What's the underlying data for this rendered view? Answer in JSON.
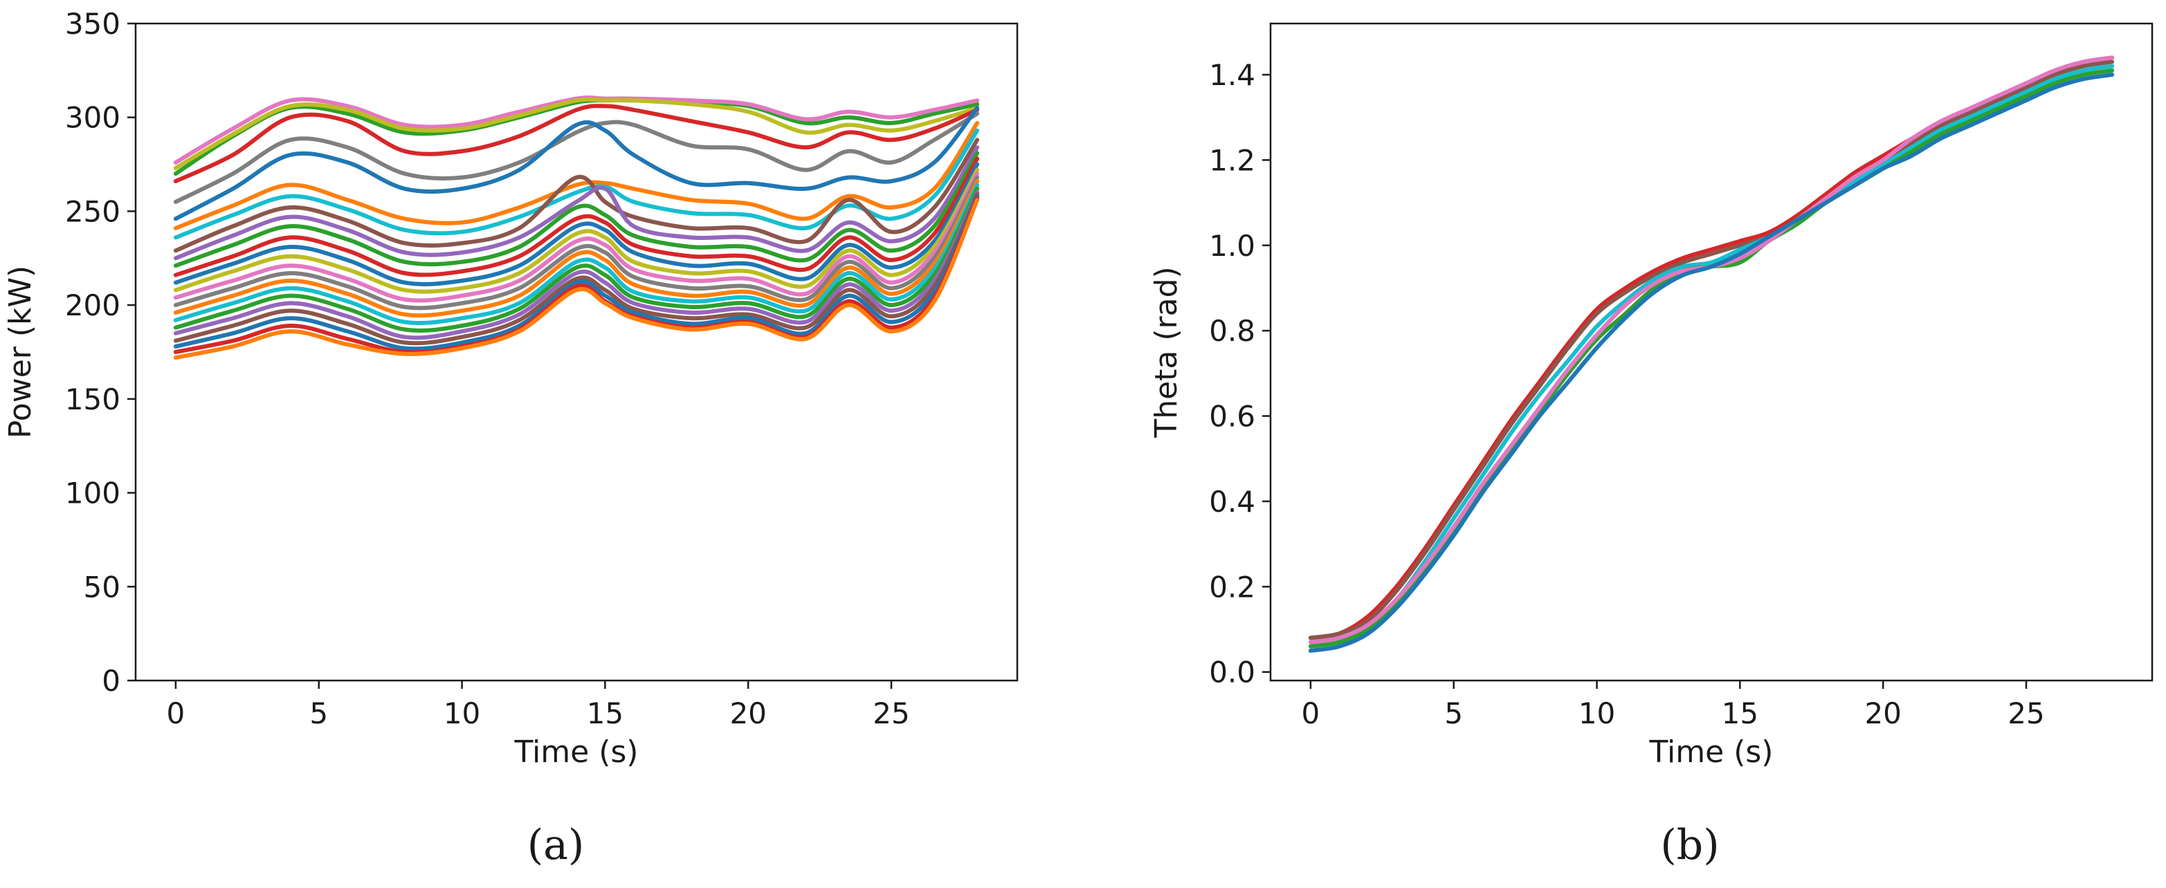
{
  "chart_data": [
    {
      "type": "line",
      "panel": "(a)",
      "xlabel": "Time (s)",
      "ylabel": "Power (kW)",
      "xlim": [
        -1.4,
        29.4
      ],
      "ylim": [
        0,
        350
      ],
      "xticks": [
        0,
        5,
        10,
        15,
        20,
        25
      ],
      "yticks": [
        0,
        50,
        100,
        150,
        200,
        250,
        300,
        350
      ],
      "grid": false,
      "legend": "none",
      "series_count_note": "many overlapping trajectories",
      "x": [
        0,
        2,
        4,
        6,
        8,
        10,
        12,
        14,
        15,
        16,
        18,
        20,
        22,
        23.5,
        25,
        26.5,
        28
      ],
      "series": [
        {
          "color": "#2ca02c",
          "values": [
            270,
            290,
            305,
            302,
            292,
            293,
            300,
            308,
            309,
            309,
            308,
            306,
            297,
            300,
            297,
            302,
            307
          ]
        },
        {
          "color": "#e377c2",
          "values": [
            276,
            294,
            309,
            306,
            296,
            296,
            303,
            310,
            310,
            310,
            309,
            307,
            299,
            303,
            300,
            304,
            309
          ]
        },
        {
          "color": "#bcbd22",
          "values": [
            273,
            291,
            306,
            304,
            294,
            294,
            301,
            309,
            309,
            309,
            307,
            303,
            292,
            296,
            293,
            298,
            305
          ]
        },
        {
          "color": "#d62728",
          "values": [
            266,
            280,
            300,
            298,
            282,
            282,
            290,
            304,
            306,
            304,
            298,
            292,
            284,
            292,
            288,
            294,
            304
          ]
        },
        {
          "color": "#7f7f7f",
          "values": [
            255,
            270,
            288,
            284,
            270,
            268,
            276,
            292,
            297,
            296,
            285,
            283,
            272,
            282,
            276,
            288,
            302
          ]
        },
        {
          "color": "#1f77b4",
          "values": [
            246,
            262,
            280,
            276,
            262,
            262,
            272,
            296,
            293,
            280,
            265,
            265,
            262,
            268,
            266,
            276,
            305
          ]
        },
        {
          "color": "#ff7f0e",
          "values": [
            241,
            253,
            264,
            256,
            246,
            244,
            252,
            264,
            265,
            262,
            256,
            254,
            246,
            258,
            252,
            262,
            297
          ]
        },
        {
          "color": "#17becf",
          "values": [
            236,
            248,
            258,
            251,
            240,
            239,
            247,
            260,
            263,
            255,
            249,
            248,
            241,
            253,
            246,
            258,
            293
          ]
        },
        {
          "color": "#8c564b",
          "values": [
            229,
            242,
            252,
            245,
            233,
            233,
            241,
            268,
            255,
            247,
            241,
            241,
            234,
            256,
            239,
            252,
            288
          ]
        },
        {
          "color": "#9467bd",
          "values": [
            225,
            237,
            247,
            240,
            228,
            228,
            236,
            255,
            262,
            242,
            236,
            236,
            229,
            244,
            234,
            246,
            284
          ]
        },
        {
          "color": "#2ca02c",
          "values": [
            221,
            232,
            242,
            235,
            223,
            223,
            231,
            252,
            248,
            237,
            231,
            231,
            224,
            240,
            229,
            242,
            281
          ]
        },
        {
          "color": "#d62728",
          "values": [
            216,
            226,
            236,
            229,
            217,
            218,
            226,
            246,
            244,
            232,
            226,
            226,
            219,
            236,
            224,
            238,
            278
          ]
        },
        {
          "color": "#1f77b4",
          "values": [
            212,
            222,
            231,
            224,
            212,
            213,
            221,
            242,
            240,
            228,
            221,
            222,
            214,
            232,
            220,
            234,
            275
          ]
        },
        {
          "color": "#bcbd22",
          "values": [
            208,
            218,
            226,
            219,
            208,
            209,
            217,
            238,
            236,
            223,
            217,
            218,
            210,
            229,
            216,
            231,
            272
          ]
        },
        {
          "color": "#e377c2",
          "values": [
            204,
            213,
            221,
            214,
            203,
            205,
            213,
            234,
            232,
            219,
            213,
            214,
            206,
            226,
            212,
            228,
            270
          ]
        },
        {
          "color": "#7f7f7f",
          "values": [
            200,
            209,
            217,
            210,
            199,
            201,
            209,
            230,
            228,
            215,
            209,
            210,
            203,
            223,
            209,
            225,
            268
          ]
        },
        {
          "color": "#ff7f0e",
          "values": [
            196,
            205,
            213,
            206,
            195,
            197,
            205,
            227,
            224,
            211,
            205,
            207,
            200,
            220,
            206,
            222,
            266
          ]
        },
        {
          "color": "#17becf",
          "values": [
            192,
            201,
            209,
            202,
            191,
            193,
            201,
            223,
            220,
            207,
            202,
            204,
            197,
            217,
            203,
            219,
            264
          ]
        },
        {
          "color": "#2ca02c",
          "values": [
            188,
            197,
            205,
            198,
            187,
            189,
            198,
            220,
            216,
            204,
            199,
            201,
            194,
            214,
            200,
            216,
            262
          ]
        },
        {
          "color": "#9467bd",
          "values": [
            185,
            193,
            201,
            194,
            183,
            186,
            195,
            217,
            212,
            201,
            196,
            198,
            191,
            211,
            197,
            213,
            260
          ]
        },
        {
          "color": "#8c564b",
          "values": [
            181,
            189,
            197,
            190,
            180,
            183,
            192,
            214,
            208,
            198,
            193,
            195,
            188,
            208,
            194,
            210,
            259
          ]
        },
        {
          "color": "#1f77b4",
          "values": [
            178,
            185,
            193,
            186,
            177,
            180,
            189,
            212,
            205,
            196,
            190,
            193,
            185,
            205,
            191,
            207,
            258
          ]
        },
        {
          "color": "#d62728",
          "values": [
            175,
            181,
            189,
            182,
            175,
            178,
            187,
            210,
            202,
            194,
            188,
            191,
            183,
            202,
            188,
            204,
            257
          ]
        },
        {
          "color": "#ff7f0e",
          "values": [
            172,
            178,
            186,
            179,
            174,
            177,
            186,
            208,
            201,
            193,
            187,
            190,
            182,
            200,
            186,
            202,
            256
          ]
        }
      ]
    },
    {
      "type": "line",
      "panel": "(b)",
      "xlabel": "Time (s)",
      "ylabel": "Theta (rad)",
      "xlim": [
        -1.4,
        29.4
      ],
      "ylim": [
        -0.02,
        1.52
      ],
      "xticks": [
        0,
        5,
        10,
        15,
        20,
        25
      ],
      "yticks": [
        0.0,
        0.2,
        0.4,
        0.6,
        0.8,
        1.0,
        1.2,
        1.4
      ],
      "ytick_labels": [
        "0.0",
        "0.2",
        "0.4",
        "0.6",
        "0.8",
        "1.0",
        "1.2",
        "1.4"
      ],
      "grid": false,
      "legend": "none",
      "x": [
        0,
        1,
        2,
        3,
        4,
        5,
        6,
        7,
        8,
        9,
        10,
        11,
        12,
        13,
        14,
        15,
        16,
        17,
        18,
        19,
        20,
        21,
        22,
        23,
        24,
        25,
        26,
        27,
        28
      ],
      "series": [
        {
          "color": "#d62728",
          "values": [
            0.08,
            0.09,
            0.13,
            0.2,
            0.29,
            0.39,
            0.49,
            0.59,
            0.68,
            0.77,
            0.85,
            0.9,
            0.94,
            0.97,
            0.99,
            1.01,
            1.03,
            1.07,
            1.12,
            1.17,
            1.21,
            1.25,
            1.29,
            1.32,
            1.35,
            1.38,
            1.41,
            1.43,
            1.44
          ]
        },
        {
          "color": "#8c564b",
          "values": [
            0.08,
            0.09,
            0.12,
            0.19,
            0.28,
            0.38,
            0.48,
            0.58,
            0.67,
            0.76,
            0.84,
            0.89,
            0.93,
            0.96,
            0.98,
            1.0,
            1.02,
            1.06,
            1.11,
            1.16,
            1.2,
            1.24,
            1.28,
            1.31,
            1.34,
            1.37,
            1.4,
            1.42,
            1.43
          ]
        },
        {
          "color": "#17becf",
          "values": [
            0.07,
            0.08,
            0.11,
            0.17,
            0.26,
            0.36,
            0.46,
            0.56,
            0.65,
            0.73,
            0.81,
            0.87,
            0.92,
            0.95,
            0.96,
            0.99,
            1.02,
            1.06,
            1.11,
            1.15,
            1.19,
            1.23,
            1.27,
            1.3,
            1.33,
            1.36,
            1.39,
            1.41,
            1.42
          ]
        },
        {
          "color": "#2ca02c",
          "values": [
            0.06,
            0.07,
            0.1,
            0.16,
            0.24,
            0.33,
            0.43,
            0.52,
            0.61,
            0.7,
            0.78,
            0.84,
            0.9,
            0.94,
            0.95,
            0.96,
            1.01,
            1.05,
            1.1,
            1.14,
            1.18,
            1.22,
            1.26,
            1.29,
            1.32,
            1.35,
            1.38,
            1.4,
            1.41
          ]
        },
        {
          "color": "#e377c2",
          "values": [
            0.07,
            0.08,
            0.11,
            0.17,
            0.25,
            0.34,
            0.44,
            0.53,
            0.62,
            0.71,
            0.79,
            0.86,
            0.91,
            0.94,
            0.95,
            0.97,
            1.01,
            1.06,
            1.11,
            1.16,
            1.2,
            1.25,
            1.29,
            1.32,
            1.35,
            1.38,
            1.41,
            1.43,
            1.44
          ]
        },
        {
          "color": "#1f77b4",
          "values": [
            0.05,
            0.06,
            0.09,
            0.15,
            0.23,
            0.32,
            0.42,
            0.51,
            0.6,
            0.68,
            0.76,
            0.83,
            0.89,
            0.93,
            0.95,
            0.98,
            1.02,
            1.06,
            1.1,
            1.14,
            1.18,
            1.21,
            1.25,
            1.28,
            1.31,
            1.34,
            1.37,
            1.39,
            1.4
          ]
        }
      ]
    }
  ],
  "captions": {
    "a": "(a)",
    "b": "(b)"
  }
}
